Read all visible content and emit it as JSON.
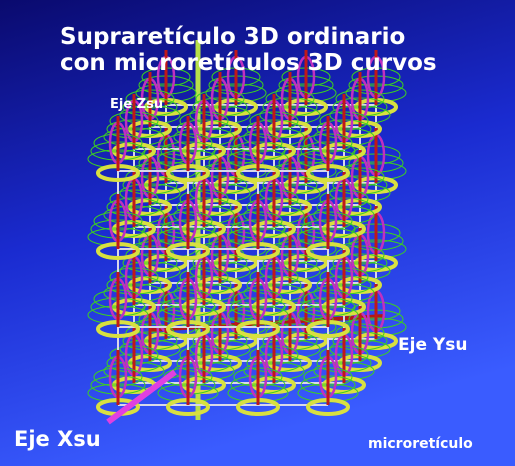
{
  "title_lines": [
    "Supraretículo 3D ordinario",
    "con microretículos 3D curvos"
  ],
  "labels": {
    "z_axis": "Eje Zsu",
    "y_axis": "Eje Ysu",
    "x_axis": "Eje Xsu",
    "micro": "microretículo"
  }
}
